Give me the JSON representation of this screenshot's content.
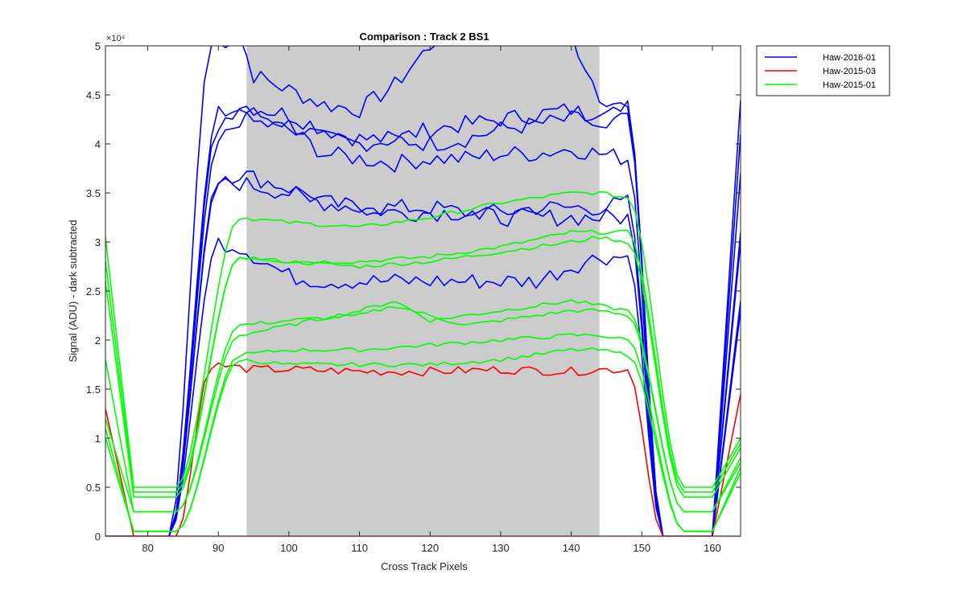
{
  "chart_data": {
    "type": "line",
    "title": "Comparison : Track 2  BS1",
    "xlabel": "Cross Track Pixels",
    "ylabel": "Signal (ADU) - dark subtracted",
    "y_exponent_label": "×10⁴",
    "xlim": [
      74,
      164
    ],
    "ylim": [
      0,
      50000
    ],
    "x_ticks": [
      80,
      90,
      100,
      110,
      120,
      130,
      140,
      150,
      160
    ],
    "y_ticks": [
      0,
      5000,
      10000,
      15000,
      20000,
      25000,
      30000,
      35000,
      40000,
      45000,
      50000
    ],
    "y_tick_labels": [
      "0",
      "0.5",
      "1",
      "1.5",
      "2",
      "2.5",
      "3",
      "3.5",
      "4",
      "4.5",
      "5"
    ],
    "shaded_region": {
      "x": [
        94,
        144
      ],
      "color": "#cccccc"
    },
    "grid": false,
    "legend_position": "outside-top-right",
    "legend": [
      {
        "name": "Haw-2016-01",
        "color": "#0000ff"
      },
      {
        "name": "Haw-2015-03",
        "color": "#ff0000"
      },
      {
        "name": "Haw-2015-01",
        "color": "#00ff00"
      }
    ],
    "series": [
      {
        "group": "Haw-2016-01",
        "color": "#0000ff",
        "edge_left": 0,
        "rise_start": 83,
        "rise_end": 90,
        "fall_start": 147,
        "fall_end": 153,
        "plateau": [
          [
            89,
            50000
          ],
          [
            93,
            51000
          ],
          [
            95,
            47000
          ],
          [
            100,
            45500
          ],
          [
            105,
            44000
          ],
          [
            110,
            43500
          ],
          [
            115,
            46000
          ],
          [
            120,
            50000
          ],
          [
            125,
            54000
          ],
          [
            130,
            55000
          ],
          [
            135,
            54000
          ],
          [
            140,
            51000
          ],
          [
            144,
            45000
          ],
          [
            148,
            43500
          ]
        ],
        "right_end": 44500
      },
      {
        "group": "Haw-2016-01",
        "color": "#0000ff",
        "edge_left": 0,
        "rise_start": 83,
        "rise_end": 90,
        "fall_start": 147,
        "fall_end": 153,
        "plateau": [
          [
            90,
            43000
          ],
          [
            93,
            43500
          ],
          [
            100,
            42000
          ],
          [
            105,
            40500
          ],
          [
            110,
            40000
          ],
          [
            115,
            40500
          ],
          [
            120,
            41500
          ],
          [
            125,
            42000
          ],
          [
            130,
            42500
          ],
          [
            135,
            43000
          ],
          [
            140,
            43500
          ],
          [
            144,
            42500
          ],
          [
            148,
            42500
          ]
        ],
        "right_end": 41000
      },
      {
        "group": "Haw-2016-01",
        "color": "#0000ff",
        "edge_left": 0,
        "rise_start": 83,
        "rise_end": 90,
        "fall_start": 147,
        "fall_end": 153,
        "plateau": [
          [
            90,
            42000
          ],
          [
            93,
            44000
          ],
          [
            100,
            43000
          ],
          [
            105,
            41500
          ],
          [
            110,
            40500
          ],
          [
            115,
            40500
          ],
          [
            120,
            40000
          ],
          [
            125,
            40500
          ],
          [
            130,
            41500
          ],
          [
            135,
            42000
          ],
          [
            140,
            42500
          ],
          [
            144,
            42500
          ],
          [
            148,
            43500
          ]
        ],
        "right_end": 37000
      },
      {
        "group": "Haw-2016-01",
        "color": "#0000ff",
        "edge_left": 0,
        "rise_start": 83,
        "rise_end": 90,
        "fall_start": 147,
        "fall_end": 153,
        "plateau": [
          [
            90,
            40000
          ],
          [
            93,
            42500
          ],
          [
            100,
            41500
          ],
          [
            105,
            39000
          ],
          [
            110,
            38500
          ],
          [
            115,
            38000
          ],
          [
            120,
            38500
          ],
          [
            125,
            38500
          ],
          [
            130,
            39000
          ],
          [
            135,
            39000
          ],
          [
            140,
            39500
          ],
          [
            144,
            39000
          ],
          [
            148,
            38500
          ]
        ],
        "right_end": 31000
      },
      {
        "group": "Haw-2016-01",
        "color": "#0000ff",
        "edge_left": 0,
        "rise_start": 83,
        "rise_end": 90,
        "fall_start": 147,
        "fall_end": 153,
        "plateau": [
          [
            90,
            36500
          ],
          [
            93,
            37000
          ],
          [
            100,
            35500
          ],
          [
            105,
            34000
          ],
          [
            110,
            33500
          ],
          [
            115,
            33500
          ],
          [
            120,
            33500
          ],
          [
            125,
            33000
          ],
          [
            130,
            33000
          ],
          [
            135,
            33500
          ],
          [
            140,
            33500
          ],
          [
            144,
            33500
          ],
          [
            148,
            34000
          ]
        ],
        "right_end": 24000
      },
      {
        "group": "Haw-2016-01",
        "color": "#0000ff",
        "edge_left": 0,
        "rise_start": 83,
        "rise_end": 90,
        "fall_start": 147,
        "fall_end": 153,
        "plateau": [
          [
            90,
            36000
          ],
          [
            93,
            36000
          ],
          [
            100,
            35000
          ],
          [
            105,
            34000
          ],
          [
            110,
            33500
          ],
          [
            115,
            33000
          ],
          [
            120,
            33000
          ],
          [
            125,
            33000
          ],
          [
            130,
            32500
          ],
          [
            135,
            32500
          ],
          [
            140,
            32500
          ],
          [
            144,
            32500
          ],
          [
            148,
            32500
          ]
        ],
        "right_end": 30000
      },
      {
        "group": "Haw-2016-01",
        "color": "#0000ff",
        "edge_left": 0,
        "rise_start": 83,
        "rise_end": 90,
        "fall_start": 147,
        "fall_end": 153,
        "plateau": [
          [
            90,
            30000
          ],
          [
            93,
            29500
          ],
          [
            100,
            26500
          ],
          [
            105,
            26000
          ],
          [
            110,
            26000
          ],
          [
            115,
            26000
          ],
          [
            120,
            26000
          ],
          [
            125,
            26000
          ],
          [
            130,
            26000
          ],
          [
            135,
            26000
          ],
          [
            140,
            27500
          ],
          [
            144,
            28500
          ],
          [
            148,
            28500
          ]
        ],
        "right_end": 23000
      },
      {
        "group": "Haw-2015-03",
        "color": "#ff0000",
        "edge_left": 13000,
        "rise_start": 84,
        "rise_end": 89,
        "fall_start": 149,
        "fall_end": 153,
        "plateau": [
          [
            89,
            17500
          ],
          [
            95,
            17000
          ],
          [
            100,
            17000
          ],
          [
            110,
            16800
          ],
          [
            120,
            16800
          ],
          [
            130,
            17000
          ],
          [
            140,
            16800
          ],
          [
            144,
            17000
          ],
          [
            148,
            17000
          ]
        ],
        "right_end": 14500
      },
      {
        "group": "Haw-2015-03",
        "color": "#ff0000",
        "edge_left": 0,
        "rise_start": 164,
        "rise_end": 164,
        "fall_start": 164,
        "fall_end": 164,
        "plateau": [],
        "right_end": 0
      },
      {
        "group": "Haw-2015-01",
        "color": "#00ff00",
        "edge_left": 30500,
        "trough": 5000,
        "rise_start": 84,
        "rise_end": 93,
        "fall_start": 150,
        "fall_end": 156,
        "plateau": [
          [
            93,
            32500
          ],
          [
            100,
            32000
          ],
          [
            110,
            31500
          ],
          [
            120,
            32500
          ],
          [
            130,
            34000
          ],
          [
            140,
            35000
          ],
          [
            144,
            35000
          ],
          [
            148,
            34500
          ]
        ],
        "right_end": 10000
      },
      {
        "group": "Haw-2015-01",
        "color": "#00ff00",
        "edge_left": 28000,
        "trough": 4500,
        "rise_start": 84,
        "rise_end": 93,
        "fall_start": 150,
        "fall_end": 156,
        "plateau": [
          [
            93,
            28500
          ],
          [
            100,
            28000
          ],
          [
            110,
            28000
          ],
          [
            120,
            28500
          ],
          [
            130,
            29500
          ],
          [
            140,
            31000
          ],
          [
            144,
            31000
          ],
          [
            148,
            31000
          ]
        ],
        "right_end": 9500
      },
      {
        "group": "Haw-2015-01",
        "color": "#00ff00",
        "edge_left": 26000,
        "trough": 4000,
        "rise_start": 84,
        "rise_end": 93,
        "fall_start": 150,
        "fall_end": 156,
        "plateau": [
          [
            93,
            28500
          ],
          [
            100,
            28000
          ],
          [
            110,
            27500
          ],
          [
            120,
            28000
          ],
          [
            130,
            29000
          ],
          [
            140,
            30000
          ],
          [
            144,
            30500
          ],
          [
            148,
            30000
          ]
        ],
        "right_end": 9000
      },
      {
        "group": "Haw-2015-01",
        "color": "#00ff00",
        "edge_left": 18000,
        "trough": 2500,
        "rise_start": 84,
        "rise_end": 93,
        "fall_start": 150,
        "fall_end": 156,
        "plateau": [
          [
            93,
            21500
          ],
          [
            100,
            22000
          ],
          [
            110,
            22500
          ],
          [
            115,
            23500
          ],
          [
            120,
            22500
          ],
          [
            125,
            21500
          ],
          [
            130,
            22000
          ],
          [
            140,
            23000
          ],
          [
            144,
            23000
          ],
          [
            148,
            22500
          ]
        ],
        "right_end": 8000
      },
      {
        "group": "Haw-2015-01",
        "color": "#00ff00",
        "edge_left": 12000,
        "trough": 2500,
        "rise_start": 84,
        "rise_end": 93,
        "fall_start": 150,
        "fall_end": 156,
        "plateau": [
          [
            93,
            20500
          ],
          [
            100,
            21500
          ],
          [
            110,
            23000
          ],
          [
            115,
            24000
          ],
          [
            120,
            22000
          ],
          [
            125,
            22500
          ],
          [
            130,
            23000
          ],
          [
            140,
            24000
          ],
          [
            144,
            23500
          ],
          [
            148,
            23000
          ]
        ],
        "right_end": 7500
      },
      {
        "group": "Haw-2015-01",
        "color": "#00ff00",
        "edge_left": 11000,
        "trough": 500,
        "rise_start": 84,
        "rise_end": 93,
        "fall_start": 150,
        "fall_end": 156,
        "plateau": [
          [
            93,
            18500
          ],
          [
            100,
            19000
          ],
          [
            110,
            19000
          ],
          [
            120,
            19500
          ],
          [
            130,
            20000
          ],
          [
            140,
            20500
          ],
          [
            144,
            20500
          ],
          [
            148,
            20000
          ]
        ],
        "right_end": 7000
      },
      {
        "group": "Haw-2015-01",
        "color": "#00ff00",
        "edge_left": 10000,
        "trough": 500,
        "rise_start": 84,
        "rise_end": 93,
        "fall_start": 150,
        "fall_end": 156,
        "plateau": [
          [
            93,
            18000
          ],
          [
            100,
            17500
          ],
          [
            110,
            17500
          ],
          [
            120,
            17500
          ],
          [
            130,
            18000
          ],
          [
            140,
            19000
          ],
          [
            144,
            19000
          ],
          [
            148,
            18500
          ]
        ],
        "right_end": 6500
      }
    ]
  }
}
